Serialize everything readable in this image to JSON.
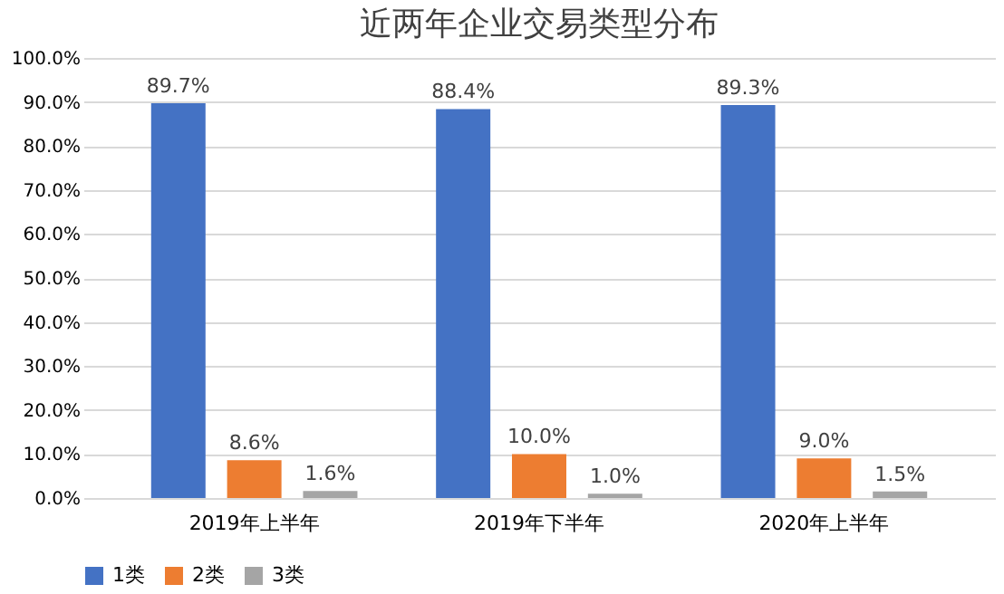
{
  "chart_data": {
    "type": "bar",
    "title": "近两年企业交易类型分布",
    "categories": [
      "2019年上半年",
      "2019年下半年",
      "2020年上半年"
    ],
    "series": [
      {
        "name": "1类",
        "color": "#4472c4",
        "values": [
          89.7,
          88.4,
          89.3
        ],
        "value_labels": [
          "89.7%",
          "88.4%",
          "89.3%"
        ]
      },
      {
        "name": "2类",
        "color": "#ed7d31",
        "values": [
          8.6,
          10.0,
          9.0
        ],
        "value_labels": [
          "8.6%",
          "10.0%",
          "9.0%"
        ]
      },
      {
        "name": "3类",
        "color": "#a5a5a5",
        "values": [
          1.6,
          1.0,
          1.5
        ],
        "value_labels": [
          "1.6%",
          "1.0%",
          "1.5%"
        ]
      }
    ],
    "ylim": [
      0,
      100
    ],
    "yticks": [
      {
        "value": 0,
        "label": "0.0%"
      },
      {
        "value": 10,
        "label": "10.0%"
      },
      {
        "value": 20,
        "label": "20.0%"
      },
      {
        "value": 30,
        "label": "30.0%"
      },
      {
        "value": 40,
        "label": "40.0%"
      },
      {
        "value": 50,
        "label": "50.0%"
      },
      {
        "value": 60,
        "label": "60.0%"
      },
      {
        "value": 70,
        "label": "70.0%"
      },
      {
        "value": 80,
        "label": "80.0%"
      },
      {
        "value": 90,
        "label": "90.0%"
      },
      {
        "value": 100,
        "label": "100.0%"
      }
    ],
    "grid": "y",
    "legend": "bottom"
  }
}
